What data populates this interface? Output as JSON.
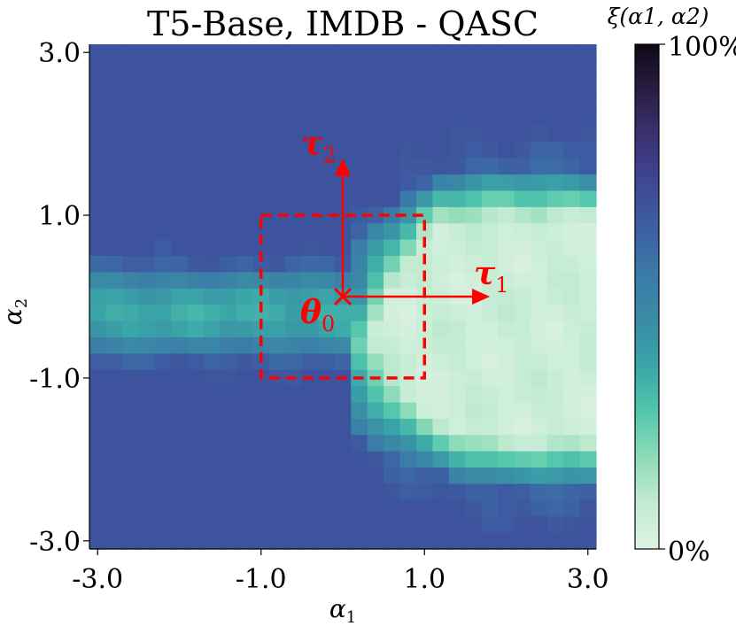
{
  "chart_data": {
    "type": "heatmap",
    "title": "T5-Base, IMDB - QASC",
    "xlabel": "α",
    "xlabel_sub": "1",
    "ylabel": "α",
    "ylabel_sub": "2",
    "xlim": [
      -3.1,
      3.1
    ],
    "ylim": [
      -3.1,
      3.1
    ],
    "xticks": [
      {
        "value": -3.0,
        "label": "-3.0"
      },
      {
        "value": -1.0,
        "label": "-1.0"
      },
      {
        "value": 1.0,
        "label": "1.0"
      },
      {
        "value": 3.0,
        "label": "3.0"
      }
    ],
    "yticks": [
      {
        "value": 3.0,
        "label": "3.0"
      },
      {
        "value": 1.0,
        "label": "1.0"
      },
      {
        "value": -1.0,
        "label": "-1.0"
      },
      {
        "value": -3.0,
        "label": "-3.0"
      }
    ],
    "grid_size": 31,
    "value_unit": "%",
    "description_note": "Cell value = ξ(α1, α2) in %, 0 (light) to 100 (dark). Grid values estimated from colors.",
    "colorbar": {
      "label": "ξ(α1, α2)",
      "min": 0,
      "max": 100,
      "min_label": "0%",
      "max_label": "100%",
      "stops": [
        "#ddf3e2",
        "#c2ebd2",
        "#8ddbb8",
        "#52c6ac",
        "#3aa5a8",
        "#3a8ba6",
        "#3b7aa8",
        "#3d5fa4",
        "#3f4795",
        "#3b3272",
        "#2a1d45",
        "#0f0a14"
      ]
    },
    "annotations": {
      "square": {
        "x0": -1.0,
        "x1": 1.0,
        "y0": -1.0,
        "y1": 1.0
      },
      "origin": {
        "x": 0.0,
        "y": 0.0,
        "label": "θ",
        "label_sub": "0"
      },
      "tau1": {
        "x_end": 1.8,
        "label": "τ",
        "label_sub": "1"
      },
      "tau2": {
        "y_end": 1.7,
        "label": "τ",
        "label_sub": "2"
      }
    },
    "annotation_color": "#ff0000"
  }
}
